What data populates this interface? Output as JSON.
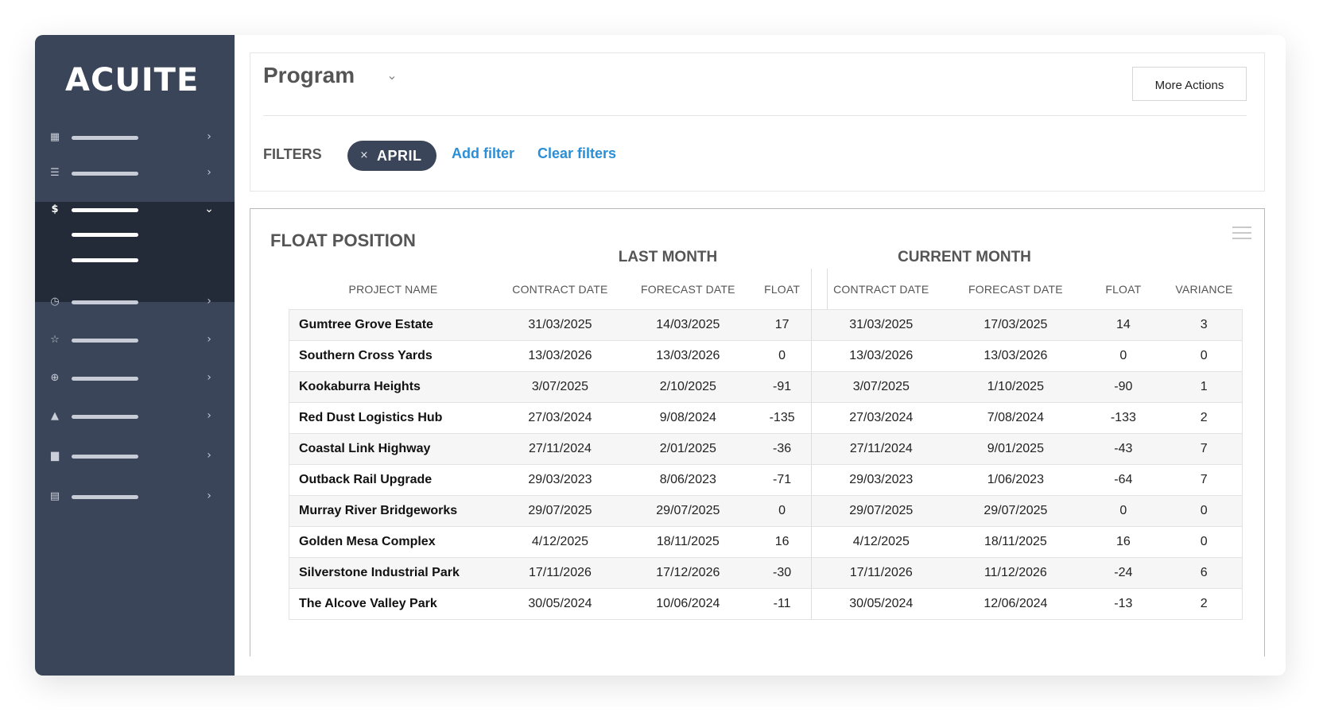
{
  "app": {
    "logo_text": "ACUITE"
  },
  "sidebar": {
    "items": [
      {
        "icon": "dashboard-icon",
        "glyph": "▦"
      },
      {
        "icon": "list-icon",
        "glyph": "☰"
      },
      {
        "icon": "dollar-icon",
        "glyph": "$",
        "active": true
      },
      {
        "icon": "clock-icon",
        "glyph": "◷"
      },
      {
        "icon": "star-icon",
        "glyph": "☆"
      },
      {
        "icon": "globe-icon",
        "glyph": "⊕"
      },
      {
        "icon": "warning-icon",
        "glyph": "▲"
      },
      {
        "icon": "file-icon",
        "glyph": "▆"
      },
      {
        "icon": "document-icon",
        "glyph": "▤"
      }
    ],
    "expanded_subitems": 2
  },
  "header": {
    "title": "Program",
    "more_actions": "More Actions",
    "filters_label": "FILTERS",
    "chip_remove_glyph": "×",
    "active_filter": "APRIL",
    "add_filter": "Add filter",
    "clear_filters": "Clear filters"
  },
  "float_position": {
    "title": "FLOAT POSITION",
    "group_last": "LAST MONTH",
    "group_current": "CURRENT MONTH",
    "columns": [
      "PROJECT NAME",
      "CONTRACT DATE",
      "FORECAST DATE",
      "FLOAT",
      "CONTRACT DATE",
      "FORECAST DATE",
      "FLOAT",
      "VARIANCE"
    ],
    "rows": [
      [
        "Gumtree Grove Estate",
        "31/03/2025",
        "14/03/2025",
        "17",
        "31/03/2025",
        "17/03/2025",
        "14",
        "3"
      ],
      [
        "Southern Cross Yards",
        "13/03/2026",
        "13/03/2026",
        "0",
        "13/03/2026",
        "13/03/2026",
        "0",
        "0"
      ],
      [
        "Kookaburra Heights",
        "3/07/2025",
        "2/10/2025",
        "-91",
        "3/07/2025",
        "1/10/2025",
        "-90",
        "1"
      ],
      [
        "Red Dust Logistics Hub",
        "27/03/2024",
        "9/08/2024",
        "-135",
        "27/03/2024",
        "7/08/2024",
        "-133",
        "2"
      ],
      [
        "Coastal Link Highway",
        "27/11/2024",
        "2/01/2025",
        "-36",
        "27/11/2024",
        "9/01/2025",
        "-43",
        "7"
      ],
      [
        "Outback Rail Upgrade",
        "29/03/2023",
        "8/06/2023",
        "-71",
        "29/03/2023",
        "1/06/2023",
        "-64",
        "7"
      ],
      [
        "Murray River Bridgeworks",
        "29/07/2025",
        "29/07/2025",
        "0",
        "29/07/2025",
        "29/07/2025",
        "0",
        "0"
      ],
      [
        "Golden Mesa Complex",
        "4/12/2025",
        "18/11/2025",
        "16",
        "4/12/2025",
        "18/11/2025",
        "16",
        "0"
      ],
      [
        "Silverstone Industrial Park",
        "17/11/2026",
        "17/12/2026",
        "-30",
        "17/11/2026",
        "11/12/2026",
        "-24",
        "6"
      ],
      [
        "The Alcove Valley Park",
        "30/05/2024",
        "10/06/2024",
        "-11",
        "30/05/2024",
        "12/06/2024",
        "-13",
        "2"
      ]
    ]
  },
  "colors": {
    "sidebar": "#3a4559",
    "sidebar_active": "#232a38",
    "link": "#2a8fd6",
    "positive": "#3aa65a",
    "negative": "#e23535"
  }
}
